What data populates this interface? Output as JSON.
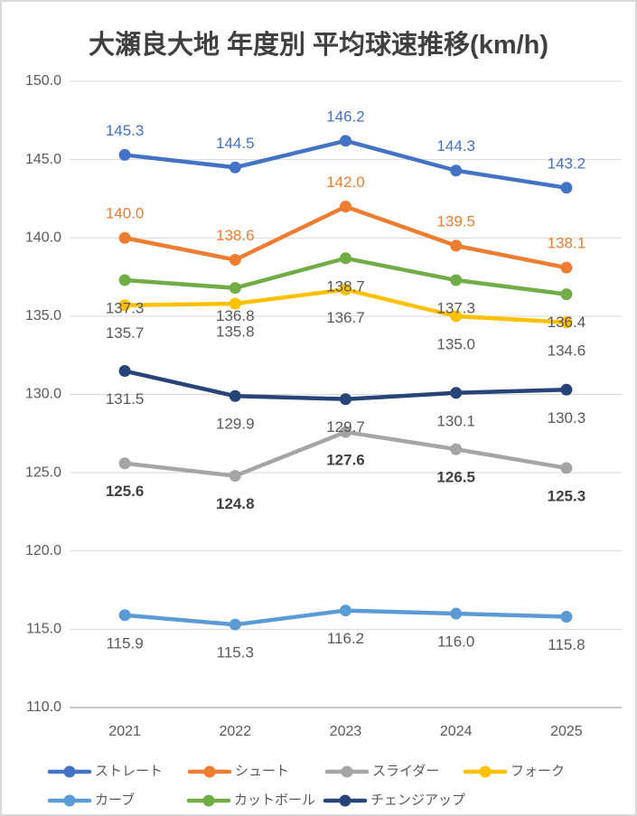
{
  "title": "大瀬良大地 年度別 平均球速推移(km/h)",
  "chart_data": {
    "type": "line",
    "categories": [
      "2021",
      "2022",
      "2023",
      "2024",
      "2025"
    ],
    "ylim": [
      110,
      150
    ],
    "ytick_step": 5,
    "y_ticks": [
      "150.0",
      "145.0",
      "140.0",
      "135.0",
      "130.0",
      "125.0",
      "120.0",
      "115.0",
      "110.0"
    ],
    "grid": true,
    "legend_position": "bottom",
    "label_decimals": 1,
    "series": [
      {
        "id": "straight",
        "name": "ストレート",
        "color": "#4472C4",
        "values": [
          145.3,
          144.5,
          146.2,
          144.3,
          143.2
        ],
        "label_position": "above",
        "label_color": "#4472C4",
        "label_bold": false
      },
      {
        "id": "shoot",
        "name": "シュート",
        "color": "#ED7D31",
        "values": [
          140.0,
          138.6,
          142.0,
          139.5,
          138.1
        ],
        "label_position": "above",
        "label_color": "#ED7D31",
        "label_bold": false
      },
      {
        "id": "slider",
        "name": "スライダー",
        "color": "#A5A5A5",
        "values": [
          125.6,
          124.8,
          127.6,
          126.5,
          125.3
        ],
        "label_position": "below",
        "label_color": "#404040",
        "label_bold": true
      },
      {
        "id": "fork",
        "name": "フォーク",
        "color": "#FFC000",
        "values": [
          135.7,
          135.8,
          136.7,
          135.0,
          134.6
        ],
        "label_position": "below",
        "label_color": "#595959",
        "label_bold": false
      },
      {
        "id": "curve",
        "name": "カーブ",
        "color": "#5B9BD5",
        "values": [
          115.9,
          115.3,
          116.2,
          116.0,
          115.8
        ],
        "label_position": "below",
        "label_color": "#595959",
        "label_bold": false
      },
      {
        "id": "cutball",
        "name": "カットボール",
        "color": "#70AD47",
        "values": [
          137.3,
          136.8,
          138.7,
          137.3,
          136.4
        ],
        "label_position": "below",
        "label_color": "#595959",
        "label_bold": false
      },
      {
        "id": "changeup",
        "name": "チェンジアップ",
        "color": "#264478",
        "values": [
          131.5,
          129.9,
          129.7,
          130.1,
          130.3
        ],
        "label_position": "below",
        "label_color": "#595959",
        "label_bold": false
      }
    ],
    "legend_rows": [
      [
        "ストレート",
        "シュート",
        "スライダー",
        "フォーク"
      ],
      [
        "カーブ",
        "カットボール",
        "チェンジアップ"
      ]
    ],
    "colors": {
      "grid": "#d9d9d9",
      "axis_line": "#c9c9c9",
      "axis_text": "#595959",
      "legend_text": "#595959",
      "title_text": "#404040",
      "background": "#ffffff",
      "border": "#d9d9d9"
    }
  }
}
